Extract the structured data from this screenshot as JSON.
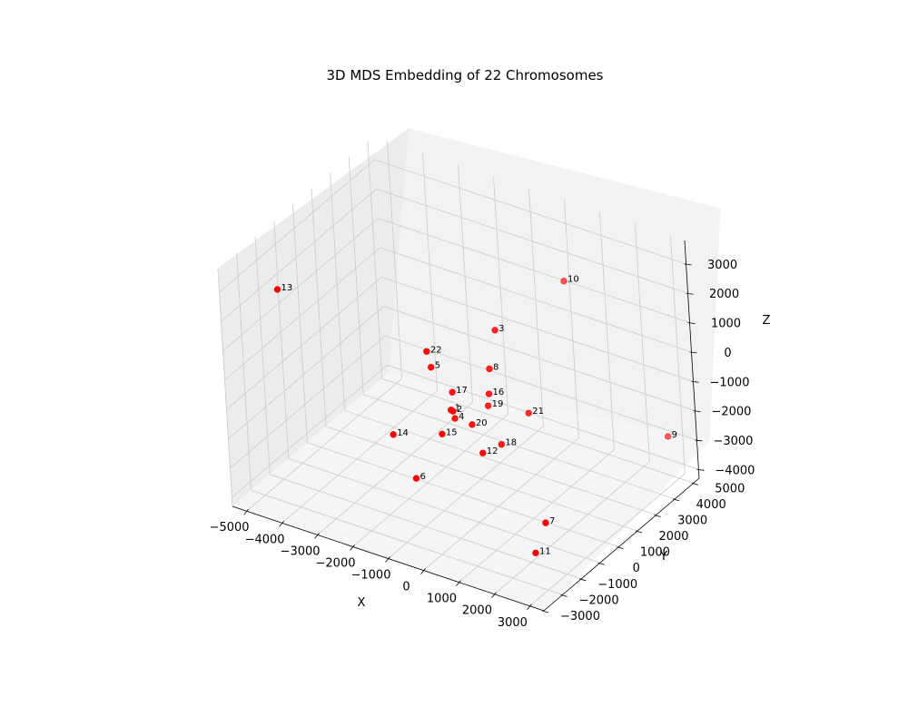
{
  "chart_data": {
    "type": "scatter",
    "title": "3D MDS Embedding of 22 Chromosomes",
    "xlabel": "X",
    "ylabel": "Y",
    "zlabel": "Z",
    "xticks": [
      "−5000",
      "−4000",
      "−3000",
      "−2000",
      "−1000",
      "0",
      "1000",
      "2000",
      "3000"
    ],
    "yticks": [
      "−3000",
      "−2000",
      "−1000",
      "0",
      "1000",
      "2000",
      "3000",
      "4000",
      "5000"
    ],
    "zticks": [
      "−4000",
      "−3000",
      "−2000",
      "−1000",
      "0",
      "1000",
      "2000",
      "3000"
    ],
    "color": "#ff0000",
    "points": [
      {
        "label": "1",
        "x": -800,
        "y": 300,
        "z": -950
      },
      {
        "label": "2",
        "x": -800,
        "y": 400,
        "z": -1050
      },
      {
        "label": "3",
        "x": -300,
        "y": 1900,
        "z": 1100
      },
      {
        "label": "4",
        "x": -700,
        "y": 300,
        "z": -1200
      },
      {
        "label": "5",
        "x": -1300,
        "y": 300,
        "z": 300
      },
      {
        "label": "6",
        "x": -500,
        "y": -2200,
        "z": -1800
      },
      {
        "label": "7",
        "x": 2300,
        "y": -700,
        "z": -3000
      },
      {
        "label": "8",
        "x": -300,
        "y": 1500,
        "z": 0
      },
      {
        "label": "9",
        "x": 2800,
        "y": 4900,
        "z": -2900
      },
      {
        "label": "10",
        "x": 300,
        "y": 4500,
        "z": 1600
      },
      {
        "label": "11",
        "x": 2300,
        "y": -1300,
        "z": -3700
      },
      {
        "label": "12",
        "x": 100,
        "y": 200,
        "z": -2000
      },
      {
        "label": "13",
        "x": -4800,
        "y": -1100,
        "z": 2300
      },
      {
        "label": "14",
        "x": -1200,
        "y": -2000,
        "z": -700
      },
      {
        "label": "15",
        "x": -700,
        "y": -400,
        "z": -1350
      },
      {
        "label": "16",
        "x": -300,
        "y": 1400,
        "z": -800
      },
      {
        "label": "17",
        "x": -900,
        "y": 600,
        "z": -550
      },
      {
        "label": "18",
        "x": 200,
        "y": 1000,
        "z": -2100
      },
      {
        "label": "19",
        "x": -400,
        "y": 1500,
        "z": -1300
      },
      {
        "label": "20",
        "x": -500,
        "y": 800,
        "z": -1600
      },
      {
        "label": "21",
        "x": 300,
        "y": 2300,
        "z": -1700
      },
      {
        "label": "22",
        "x": -1400,
        "y": 300,
        "z": 800
      }
    ]
  }
}
